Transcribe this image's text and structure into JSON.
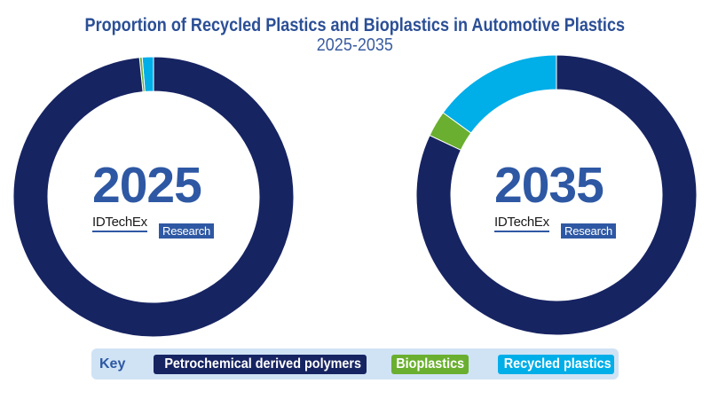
{
  "header": {
    "title": "Proportion of Recycled Plastics and Bioplastics in Automotive Plastics",
    "subtitle": "2025-2035"
  },
  "colors": {
    "petrochemical": "#172462",
    "bioplastics": "#6aaf2f",
    "recycled": "#00aee8",
    "text_blue": "#2e58a3",
    "legend_bg": "#cfe3f5"
  },
  "donuts": [
    {
      "year_label": "2025",
      "brand": "IDTechEx",
      "brand_tag": "Research"
    },
    {
      "year_label": "2035",
      "brand": "IDTechEx",
      "brand_tag": "Research"
    }
  ],
  "legend": {
    "key_label": "Key",
    "items": [
      {
        "label": "Petrochemical derived polymers",
        "color": "#172462"
      },
      {
        "label": "Bioplastics",
        "color": "#6aaf2f"
      },
      {
        "label": "Recycled plastics",
        "color": "#00aee8"
      }
    ]
  },
  "chart_data": [
    {
      "type": "pie",
      "subtype": "donut",
      "title": "Proportion of Recycled Plastics and Bioplastics in Automotive Plastics",
      "subtitle": "2025-2035",
      "center_label": "2025",
      "categories": [
        "Petrochemical derived polymers",
        "Bioplastics",
        "Recycled plastics"
      ],
      "values": [
        98.4,
        0.3,
        1.3
      ],
      "unit": "%",
      "legend_position": "bottom"
    },
    {
      "type": "pie",
      "subtype": "donut",
      "title": "Proportion of Recycled Plastics and Bioplastics in Automotive Plastics",
      "subtitle": "2025-2035",
      "center_label": "2035",
      "categories": [
        "Petrochemical derived polymers",
        "Bioplastics",
        "Recycled plastics"
      ],
      "values": [
        82,
        3,
        15
      ],
      "unit": "%",
      "legend_position": "bottom"
    }
  ]
}
